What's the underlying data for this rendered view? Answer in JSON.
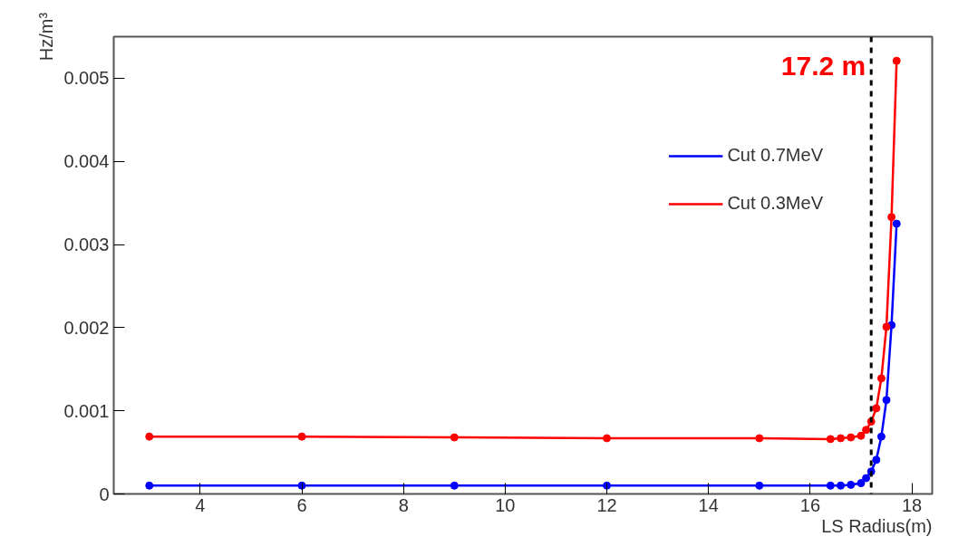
{
  "chart_data": {
    "type": "line",
    "xlabel": "LS Radius(m)",
    "ylabel": "Hz/m³",
    "series": [
      {
        "name": "Cut 0.7MeV",
        "color": "#0000ff",
        "x": [
          3,
          6,
          9,
          12,
          15,
          16.4,
          16.6,
          16.8,
          17.0,
          17.1,
          17.2,
          17.3,
          17.4,
          17.5,
          17.6,
          17.7
        ],
        "values": [
          0.0001,
          0.0001,
          0.0001,
          0.0001,
          0.0001,
          0.0001,
          0.0001,
          0.00011,
          0.00013,
          0.00019,
          0.00027,
          0.00041,
          0.00069,
          0.00113,
          0.00203,
          0.00325
        ]
      },
      {
        "name": "Cut 0.3MeV",
        "color": "#ff0000",
        "x": [
          3,
          6,
          9,
          12,
          15,
          16.4,
          16.6,
          16.8,
          17.0,
          17.1,
          17.2,
          17.3,
          17.4,
          17.5,
          17.6,
          17.7
        ],
        "values": [
          0.00069,
          0.00069,
          0.00068,
          0.00067,
          0.00067,
          0.00066,
          0.00067,
          0.00068,
          0.0007,
          0.00077,
          0.00087,
          0.00103,
          0.00139,
          0.00201,
          0.00333,
          0.00521
        ]
      }
    ],
    "xlim": [
      2.3,
      18.4
    ],
    "xticks": [
      4,
      6,
      8,
      10,
      12,
      14,
      16,
      18
    ],
    "ylim": [
      0,
      0.0055
    ],
    "yticks": [
      0,
      0.001,
      0.002,
      0.003,
      0.004,
      0.005
    ],
    "ref_lines": [
      {
        "axis": "x",
        "value": 17.2,
        "label": "17.2 m",
        "color": "#000000",
        "line_style": "dashed"
      }
    ],
    "marker": "circle",
    "legend": "top right",
    "grid": false
  }
}
